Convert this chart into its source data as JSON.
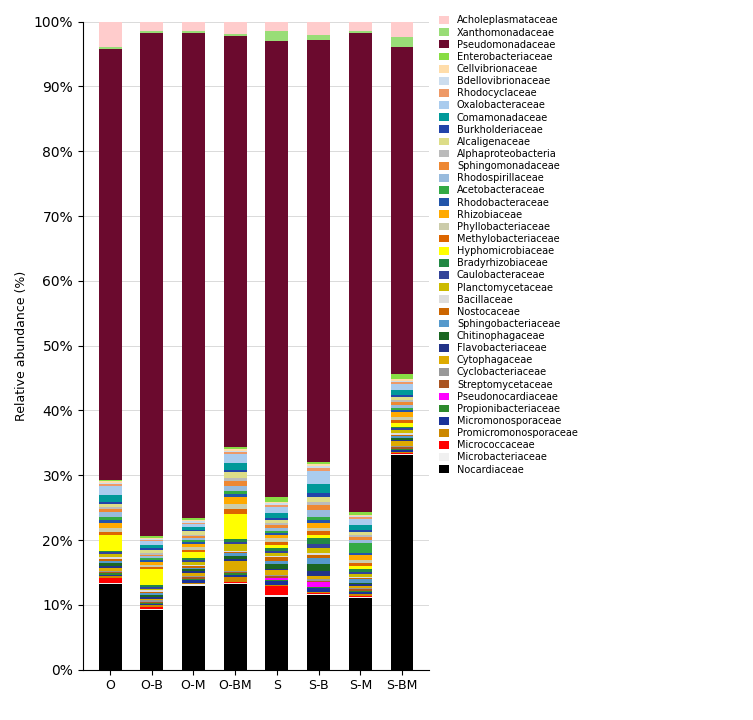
{
  "categories": [
    "O",
    "O-B",
    "O-M",
    "O-BM",
    "S",
    "S-B",
    "S-M",
    "S-BM"
  ],
  "families": [
    "Nocardiaceae",
    "Microbacteriaceae",
    "Micrococcaceae",
    "Promicromonosporaceae",
    "Micromonosporaceae",
    "Propionibacteriaceae",
    "Pseudonocardiaceae",
    "Streptomycetaceae",
    "Cyclobacteriaceae",
    "Cytophagaceae",
    "Flavobacteriaceae",
    "Chitinophagaceae",
    "Sphingobacteriaceae",
    "Nostocaceae",
    "Bacillaceae",
    "Planctomycetaceae",
    "Caulobacteraceae",
    "Bradyrhizobiaceae",
    "Hyphomicrobiaceae",
    "Methylobacteriaceae",
    "Phyllobacteriaceae",
    "Rhizobiaceae",
    "Rhodobacteraceae",
    "Acetobacteraceae",
    "Rhodospirillaceae",
    "Sphingomonadaceae",
    "Alphaproteobacteria",
    "Alcaligenaceae",
    "Burkholderiaceae",
    "Comamonadaceae",
    "Oxalobacteraceae",
    "Rhodocyclaceae",
    "Bdellovibrionaceae",
    "Cellvibrionaceae",
    "Enterobacteriaceae",
    "Pseudomonadaceae",
    "Xanthomonadaceae",
    "Acholeplasmataceae"
  ],
  "family_colors": {
    "Acholeplasmataceae": "#ffcccc",
    "Xanthomonadaceae": "#99dd77",
    "Pseudomonadaceae": "#6b0a2e",
    "Enterobacteriaceae": "#88dd44",
    "Cellvibrionaceae": "#ffddaa",
    "Bdellovibrionaceae": "#ccddee",
    "Rhodocyclaceae": "#ee9966",
    "Oxalobacteraceae": "#aaccee",
    "Comamonadaceae": "#009999",
    "Burkholderiaceae": "#2244aa",
    "Alcaligenaceae": "#dddd88",
    "Alphaproteobacteria": "#bbbbbb",
    "Sphingomonadaceae": "#ee8833",
    "Rhodospirillaceae": "#99bbdd",
    "Acetobacteraceae": "#33aa44",
    "Rhodobacteraceae": "#2255aa",
    "Rhizobiaceae": "#ffaa00",
    "Phyllobacteriaceae": "#ccccaa",
    "Methylobacteriaceae": "#dd6600",
    "Hyphomicrobiaceae": "#ffff00",
    "Bradyrhizobiaceae": "#228844",
    "Caulobacteraceae": "#334499",
    "Planctomycetaceae": "#ccbb00",
    "Bacillaceae": "#dddddd",
    "Nostocaceae": "#cc6600",
    "Sphingobacteriaceae": "#5599cc",
    "Chitinophagaceae": "#1a6622",
    "Flavobacteriaceae": "#223388",
    "Cytophagaceae": "#ddaa00",
    "Cyclobacteriaceae": "#999999",
    "Streptomycetaceae": "#aa5522",
    "Pseudonocardiaceae": "#ff00ff",
    "Propionibacteriaceae": "#2d8a2d",
    "Micromonosporaceae": "#1a3399",
    "Promicromonosporaceae": "#cc8800",
    "Micrococcaceae": "#ff0000",
    "Microbacteriaceae": "#f0f0f0",
    "Nocardiaceae": "#000000"
  },
  "data": {
    "O": [
      13.5,
      0.2,
      0.8,
      0.2,
      0.3,
      0.2,
      0.0,
      0.2,
      0.2,
      0.5,
      0.3,
      0.5,
      0.3,
      0.2,
      0.3,
      0.5,
      0.3,
      0.3,
      2.5,
      0.5,
      0.5,
      0.8,
      0.5,
      0.5,
      0.8,
      0.5,
      0.3,
      0.5,
      0.3,
      1.0,
      1.5,
      0.3,
      0.2,
      0.2,
      0.3,
      68.0,
      0.3,
      4.0
    ],
    "O-B": [
      9.5,
      0.2,
      0.3,
      0.2,
      0.2,
      0.2,
      0.0,
      0.2,
      0.2,
      0.3,
      0.3,
      0.3,
      0.3,
      0.2,
      0.2,
      0.3,
      0.3,
      0.3,
      2.5,
      0.3,
      0.3,
      0.5,
      0.3,
      0.3,
      0.3,
      0.3,
      0.3,
      0.5,
      0.3,
      0.5,
      0.5,
      0.2,
      0.2,
      0.2,
      0.3,
      80.0,
      0.3,
      1.5
    ],
    "O-M": [
      13.5,
      0.2,
      0.0,
      0.2,
      0.5,
      0.2,
      0.0,
      0.2,
      0.2,
      0.5,
      0.3,
      0.3,
      0.3,
      0.2,
      0.2,
      0.5,
      0.3,
      0.3,
      1.0,
      0.3,
      0.5,
      0.5,
      0.3,
      0.3,
      0.3,
      0.3,
      0.3,
      0.5,
      0.2,
      0.5,
      0.5,
      0.2,
      0.2,
      0.2,
      0.3,
      78.0,
      0.3,
      1.5
    ],
    "O-BM": [
      13.5,
      0.2,
      0.2,
      0.8,
      0.3,
      0.2,
      0.0,
      0.2,
      0.2,
      1.5,
      0.3,
      0.5,
      0.5,
      0.2,
      0.2,
      1.0,
      0.3,
      0.5,
      4.0,
      0.8,
      0.8,
      1.0,
      0.5,
      0.5,
      0.8,
      0.8,
      0.5,
      1.0,
      0.3,
      1.0,
      1.5,
      0.3,
      0.2,
      0.2,
      0.3,
      65.0,
      0.3,
      2.0
    ],
    "S": [
      11.5,
      0.2,
      1.5,
      0.2,
      0.5,
      0.3,
      0.3,
      0.2,
      0.2,
      0.8,
      0.2,
      0.8,
      0.5,
      0.5,
      0.2,
      0.5,
      0.3,
      0.5,
      0.5,
      0.5,
      0.5,
      0.5,
      0.3,
      0.3,
      0.5,
      0.5,
      0.3,
      0.5,
      0.3,
      0.8,
      1.0,
      0.3,
      0.2,
      0.2,
      0.8,
      72.0,
      1.5,
      1.5
    ],
    "S-B": [
      11.5,
      0.2,
      0.2,
      0.2,
      0.5,
      0.2,
      0.8,
      0.2,
      0.2,
      0.5,
      0.8,
      1.0,
      1.0,
      0.5,
      0.3,
      0.8,
      0.5,
      1.0,
      0.5,
      0.5,
      0.5,
      0.8,
      0.5,
      0.5,
      1.0,
      0.8,
      0.5,
      0.8,
      0.5,
      1.5,
      2.0,
      0.5,
      0.3,
      0.2,
      0.3,
      65.5,
      0.8,
      2.0
    ],
    "S-M": [
      11.5,
      0.2,
      0.2,
      0.2,
      0.3,
      0.3,
      0.0,
      0.2,
      0.2,
      0.3,
      0.3,
      0.3,
      0.5,
      0.2,
      0.2,
      0.5,
      0.3,
      0.5,
      0.5,
      0.5,
      0.5,
      0.8,
      0.3,
      1.5,
      0.5,
      0.5,
      0.3,
      0.5,
      0.3,
      0.8,
      1.0,
      0.3,
      0.2,
      0.2,
      0.5,
      77.0,
      0.3,
      1.5
    ],
    "S-BM": [
      34.0,
      0.2,
      0.2,
      0.2,
      0.3,
      0.2,
      0.0,
      0.2,
      0.2,
      0.8,
      0.2,
      0.3,
      0.3,
      0.2,
      0.2,
      0.5,
      0.3,
      0.3,
      0.5,
      0.5,
      0.5,
      0.8,
      0.3,
      0.3,
      0.5,
      0.5,
      0.3,
      0.5,
      0.3,
      0.8,
      1.0,
      0.3,
      0.2,
      0.2,
      0.8,
      52.0,
      1.5,
      2.5
    ]
  },
  "ylabel": "Relative abundance (%)",
  "bar_width": 0.55,
  "figsize": [
    7.53,
    7.2
  ],
  "dpi": 100
}
